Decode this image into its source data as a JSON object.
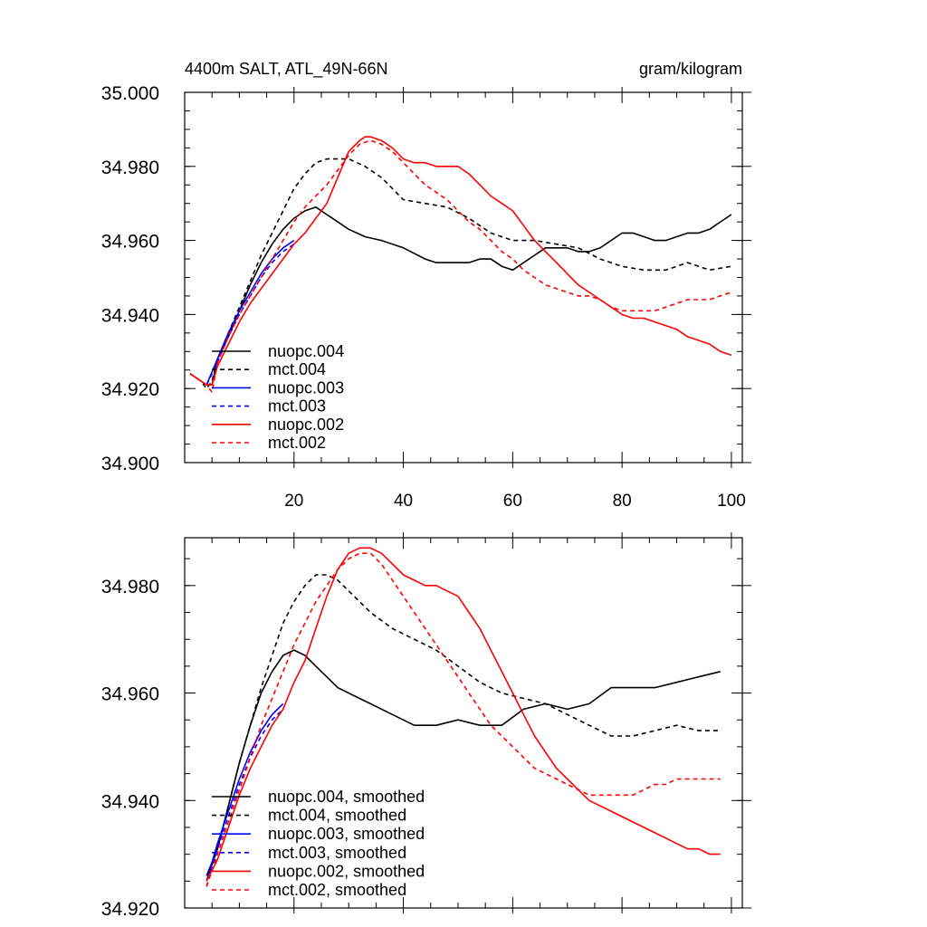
{
  "chart_data": [
    {
      "type": "line",
      "title_left": "4400m SALT, ATL_49N-66N",
      "title_right": "gram/kilogram",
      "xlim": [
        0,
        102
      ],
      "ylim": [
        34.9,
        35.0
      ],
      "x_ticks": [
        20,
        40,
        60,
        80,
        100
      ],
      "x_tick_labels": [
        "20",
        "40",
        "60",
        "80",
        "100"
      ],
      "y_ticks": [
        34.9,
        34.92,
        34.94,
        34.96,
        34.98,
        35.0
      ],
      "y_tick_labels": [
        "34.900",
        "34.920",
        "34.940",
        "34.960",
        "34.980",
        "35.000"
      ],
      "legend_position": "lower-left",
      "series": [
        {
          "name": "nuopc.004",
          "color": "#000000",
          "dash": false,
          "x": [
            1,
            3,
            4,
            5,
            6,
            8,
            10,
            12,
            14,
            16,
            18,
            20,
            22,
            24,
            26,
            28,
            30,
            33,
            36,
            40,
            44,
            46,
            48,
            50,
            52,
            54,
            56,
            58,
            60,
            62,
            64,
            66,
            68,
            70,
            72,
            74,
            76,
            78,
            80,
            82,
            84,
            86,
            88,
            90,
            92,
            94,
            96,
            98,
            100
          ],
          "y": [
            34.924,
            34.922,
            34.921,
            34.921,
            34.928,
            34.934,
            34.941,
            34.948,
            34.954,
            34.959,
            34.963,
            34.966,
            34.968,
            34.969,
            34.967,
            34.965,
            34.963,
            34.961,
            34.96,
            34.958,
            34.955,
            34.954,
            34.954,
            34.954,
            34.954,
            34.955,
            34.955,
            34.953,
            34.952,
            34.954,
            34.956,
            34.958,
            34.958,
            34.958,
            34.957,
            34.957,
            34.958,
            34.96,
            34.962,
            34.962,
            34.961,
            34.96,
            34.96,
            34.961,
            34.962,
            34.962,
            34.963,
            34.965,
            34.967
          ]
        },
        {
          "name": "mct.004",
          "color": "#000000",
          "dash": true,
          "x": [
            1,
            3,
            4,
            5,
            6,
            8,
            10,
            12,
            14,
            16,
            18,
            20,
            22,
            24,
            26,
            28,
            30,
            33,
            36,
            38,
            40,
            44,
            48,
            52,
            56,
            60,
            64,
            68,
            72,
            76,
            80,
            84,
            88,
            92,
            96,
            100
          ],
          "y": [
            34.924,
            34.922,
            34.92,
            34.922,
            34.928,
            34.935,
            34.942,
            34.949,
            34.956,
            34.962,
            34.968,
            34.974,
            34.978,
            34.981,
            34.982,
            34.982,
            34.982,
            34.98,
            34.977,
            34.974,
            34.971,
            34.97,
            34.969,
            34.966,
            34.962,
            34.96,
            34.96,
            34.959,
            34.958,
            34.955,
            34.953,
            34.952,
            34.952,
            34.954,
            34.952,
            34.953
          ]
        },
        {
          "name": "nuopc.003",
          "color": "#0000ff",
          "dash": false,
          "x": [
            4,
            6,
            8,
            10,
            12,
            14,
            16,
            18,
            20
          ],
          "y": [
            34.921,
            34.928,
            34.935,
            34.941,
            34.946,
            34.951,
            34.955,
            34.958,
            34.96
          ]
        },
        {
          "name": "mct.003",
          "color": "#0000ff",
          "dash": true,
          "x": [
            4,
            6,
            8,
            10,
            12,
            14,
            16,
            18,
            20
          ],
          "y": [
            34.921,
            34.927,
            34.934,
            34.94,
            34.945,
            34.95,
            34.954,
            34.957,
            34.959
          ]
        },
        {
          "name": "nuopc.002",
          "color": "#ff0000",
          "dash": false,
          "x": [
            1,
            3,
            4,
            5,
            6,
            8,
            10,
            12,
            14,
            16,
            18,
            20,
            22,
            24,
            26,
            28,
            30,
            32,
            33,
            34,
            36,
            38,
            40,
            42,
            44,
            46,
            48,
            50,
            52,
            54,
            56,
            58,
            60,
            62,
            64,
            66,
            68,
            70,
            72,
            74,
            76,
            78,
            80,
            82,
            84,
            86,
            88,
            90,
            92,
            94,
            96,
            98,
            100
          ],
          "y": [
            34.924,
            34.922,
            34.921,
            34.921,
            34.926,
            34.932,
            34.938,
            34.943,
            34.947,
            34.951,
            34.955,
            34.959,
            34.962,
            34.966,
            34.97,
            34.977,
            34.984,
            34.987,
            34.988,
            34.988,
            34.987,
            34.985,
            34.982,
            34.981,
            34.981,
            34.98,
            34.98,
            34.98,
            34.978,
            34.975,
            34.972,
            34.97,
            34.968,
            34.964,
            34.96,
            34.957,
            34.954,
            34.951,
            34.948,
            34.946,
            34.944,
            34.942,
            34.94,
            34.939,
            34.939,
            34.938,
            34.937,
            34.936,
            34.934,
            34.933,
            34.932,
            34.93,
            34.929
          ]
        },
        {
          "name": "mct.002",
          "color": "#ff0000",
          "dash": true,
          "x": [
            1,
            3,
            4,
            5,
            6,
            8,
            10,
            12,
            14,
            16,
            18,
            20,
            22,
            24,
            26,
            28,
            30,
            32,
            34,
            36,
            38,
            40,
            42,
            44,
            46,
            48,
            50,
            52,
            54,
            56,
            58,
            60,
            62,
            64,
            66,
            68,
            70,
            72,
            74,
            76,
            78,
            80,
            82,
            84,
            86,
            88,
            90,
            92,
            94,
            96,
            98,
            100
          ],
          "y": [
            34.924,
            34.922,
            34.921,
            34.919,
            34.927,
            34.934,
            34.94,
            34.945,
            34.95,
            34.955,
            34.96,
            34.965,
            34.969,
            34.972,
            34.975,
            34.979,
            34.983,
            34.986,
            34.987,
            34.986,
            34.984,
            34.981,
            34.978,
            34.975,
            34.973,
            34.971,
            34.968,
            34.965,
            34.963,
            34.96,
            34.957,
            34.955,
            34.952,
            34.95,
            34.948,
            34.947,
            34.946,
            34.945,
            34.945,
            34.944,
            34.942,
            34.941,
            34.941,
            34.941,
            34.941,
            34.942,
            34.943,
            34.944,
            34.944,
            34.944,
            34.945,
            34.946
          ]
        }
      ]
    },
    {
      "type": "line",
      "xlim": [
        0,
        102
      ],
      "ylim": [
        34.92,
        34.9889
      ],
      "x_ticks": [
        20,
        40,
        60,
        80,
        100
      ],
      "y_ticks": [
        34.92,
        34.94,
        34.96,
        34.98
      ],
      "y_tick_labels": [
        "34.920",
        "34.940",
        "34.960",
        "34.980"
      ],
      "legend_position": "lower-left",
      "series": [
        {
          "name": "nuopc.004, smoothed",
          "color": "#000000",
          "dash": false,
          "x": [
            4,
            6,
            8,
            10,
            12,
            14,
            16,
            18,
            20,
            22,
            24,
            26,
            28,
            30,
            34,
            38,
            42,
            46,
            50,
            54,
            58,
            62,
            66,
            70,
            74,
            78,
            82,
            86,
            90,
            94,
            98
          ],
          "y": [
            34.926,
            34.931,
            34.939,
            34.947,
            34.954,
            34.96,
            34.964,
            34.967,
            34.968,
            34.967,
            34.965,
            34.963,
            34.961,
            34.96,
            34.958,
            34.956,
            34.954,
            34.954,
            34.955,
            34.954,
            34.954,
            34.957,
            34.958,
            34.957,
            34.958,
            34.961,
            34.961,
            34.961,
            34.962,
            34.963,
            34.964
          ]
        },
        {
          "name": "mct.004, smoothed",
          "color": "#000000",
          "dash": true,
          "x": [
            4,
            6,
            8,
            10,
            12,
            14,
            16,
            18,
            20,
            22,
            24,
            26,
            28,
            30,
            32,
            34,
            38,
            42,
            46,
            50,
            54,
            58,
            62,
            66,
            70,
            74,
            78,
            82,
            86,
            90,
            94,
            98
          ],
          "y": [
            34.925,
            34.931,
            34.939,
            34.947,
            34.954,
            34.961,
            34.967,
            34.973,
            34.977,
            34.98,
            34.982,
            34.982,
            34.981,
            34.979,
            34.977,
            34.975,
            34.972,
            34.97,
            34.968,
            34.965,
            34.962,
            34.96,
            34.959,
            34.958,
            34.956,
            34.954,
            34.952,
            34.952,
            34.953,
            34.954,
            34.953,
            34.953
          ]
        },
        {
          "name": "nuopc.003, smoothed",
          "color": "#0000ff",
          "dash": false,
          "x": [
            4,
            6,
            8,
            10,
            12,
            14,
            16,
            18
          ],
          "y": [
            34.925,
            34.932,
            34.938,
            34.944,
            34.949,
            34.953,
            34.956,
            34.958
          ]
        },
        {
          "name": "mct.003, smoothed",
          "color": "#0000ff",
          "dash": true,
          "x": [
            4,
            6,
            8,
            10,
            12,
            14,
            16,
            18
          ],
          "y": [
            34.924,
            34.931,
            34.937,
            34.943,
            34.948,
            34.952,
            34.955,
            34.957
          ]
        },
        {
          "name": "nuopc.002, smoothed",
          "color": "#ff0000",
          "dash": false,
          "x": [
            4,
            6,
            8,
            10,
            12,
            14,
            16,
            18,
            20,
            22,
            24,
            26,
            28,
            30,
            32,
            34,
            36,
            38,
            40,
            42,
            44,
            46,
            48,
            50,
            52,
            54,
            56,
            58,
            60,
            62,
            64,
            66,
            68,
            70,
            72,
            74,
            76,
            78,
            80,
            82,
            84,
            86,
            88,
            90,
            92,
            94,
            96,
            98
          ],
          "y": [
            34.925,
            34.929,
            34.935,
            34.941,
            34.946,
            34.95,
            34.954,
            34.957,
            34.962,
            34.966,
            34.972,
            34.978,
            34.983,
            34.986,
            34.987,
            34.987,
            34.986,
            34.984,
            34.982,
            34.981,
            34.98,
            34.98,
            34.979,
            34.978,
            34.975,
            34.972,
            34.968,
            34.964,
            34.96,
            34.956,
            34.952,
            34.949,
            34.946,
            34.944,
            34.942,
            34.94,
            34.939,
            34.938,
            34.937,
            34.936,
            34.935,
            34.934,
            34.933,
            34.932,
            34.931,
            34.931,
            34.93,
            34.93
          ]
        },
        {
          "name": "mct.002, smoothed",
          "color": "#ff0000",
          "dash": true,
          "x": [
            4,
            6,
            8,
            10,
            12,
            14,
            16,
            18,
            20,
            22,
            24,
            26,
            28,
            30,
            32,
            34,
            36,
            38,
            40,
            42,
            44,
            46,
            48,
            50,
            52,
            54,
            56,
            58,
            60,
            62,
            64,
            66,
            68,
            70,
            72,
            74,
            76,
            78,
            80,
            82,
            84,
            86,
            88,
            90,
            92,
            94,
            96,
            98
          ],
          "y": [
            34.924,
            34.93,
            34.936,
            34.942,
            34.948,
            34.954,
            34.959,
            34.964,
            34.969,
            34.973,
            34.977,
            34.98,
            34.983,
            34.985,
            34.986,
            34.986,
            34.984,
            34.981,
            34.978,
            34.975,
            34.972,
            34.969,
            34.966,
            34.963,
            34.96,
            34.957,
            34.954,
            34.952,
            34.95,
            34.948,
            34.946,
            34.945,
            34.944,
            34.943,
            34.942,
            34.941,
            34.941,
            34.941,
            34.941,
            34.941,
            34.942,
            34.943,
            34.943,
            34.944,
            34.944,
            34.944,
            34.944,
            34.944
          ]
        }
      ]
    }
  ]
}
